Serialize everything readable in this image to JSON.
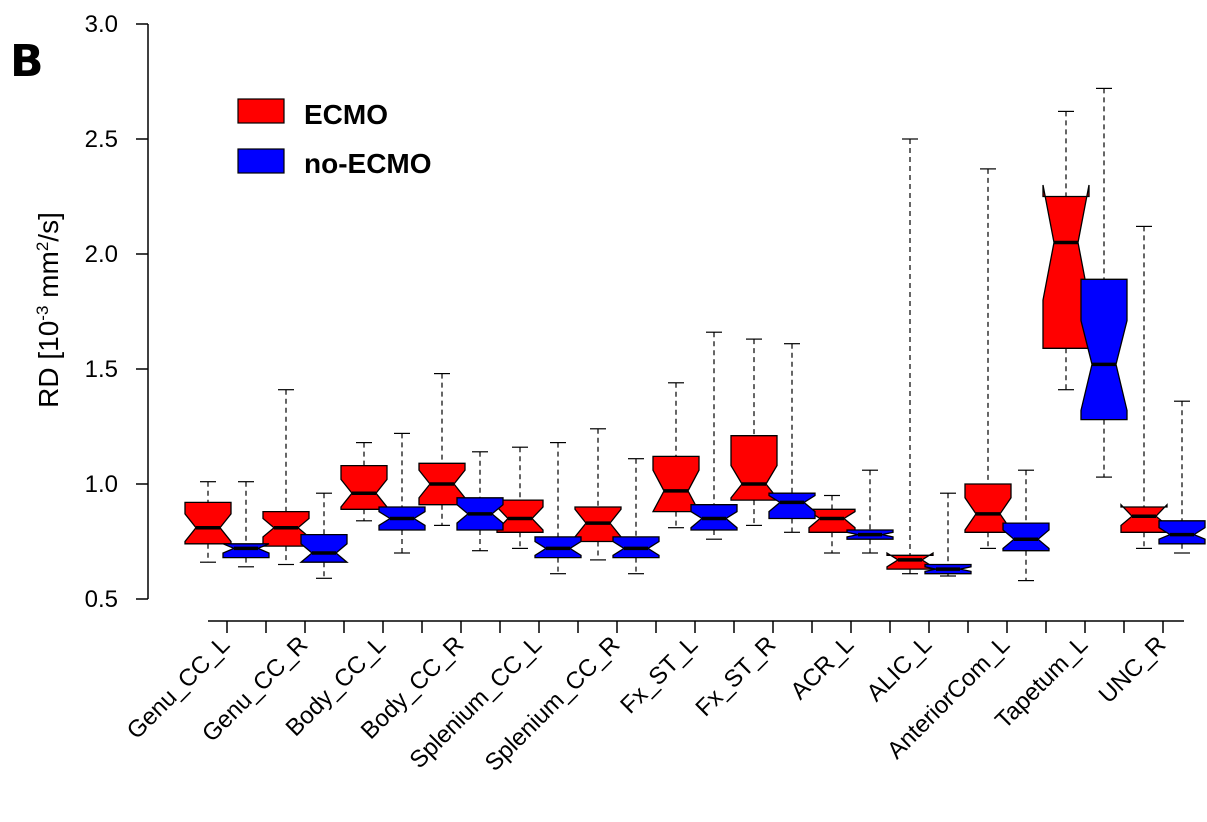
{
  "panel_label": "B",
  "chart_data": {
    "type": "boxplot",
    "notched": true,
    "ylabel": "RD [10-3 mm2/s]",
    "ylabel_parts": {
      "prefix": "RD [10",
      "exp1": "-3",
      "mid": " mm",
      "exp2": "2",
      "suffix": "/s]"
    },
    "ylim": [
      0.5,
      3.0
    ],
    "yticks": [
      0.5,
      1.0,
      1.5,
      2.0,
      2.5,
      3.0
    ],
    "ytick_labels": [
      "0.5",
      "1.0",
      "1.5",
      "2.0",
      "2.5",
      "3.0"
    ],
    "legend": {
      "placement": "top-left",
      "entries": [
        {
          "name": "ECMO",
          "color": "#ff0000"
        },
        {
          "name": "no-ECMO",
          "color": "#0000ff"
        }
      ]
    },
    "categories": [
      "Genu_CC_L",
      "Genu_CC_R",
      "Body_CC_L",
      "Body_CC_R",
      "Splenium_CC_L",
      "Splenium_CC_R",
      "Fx_ST_L",
      "Fx_ST_R",
      "ACR_L",
      "ALIC_L",
      "AnteriorCom_L",
      "Tapetum_L",
      "UNC_R"
    ],
    "series": [
      {
        "name": "ECMO",
        "color": "#ff0000",
        "boxes": [
          {
            "min": 0.66,
            "q1": 0.74,
            "median": 0.81,
            "q3": 0.92,
            "max": 1.01,
            "notch_lo": 0.75,
            "notch_hi": 0.87
          },
          {
            "min": 0.65,
            "q1": 0.73,
            "median": 0.81,
            "q3": 0.88,
            "max": 1.41,
            "notch_lo": 0.77,
            "notch_hi": 0.85
          },
          {
            "min": 0.84,
            "q1": 0.89,
            "median": 0.96,
            "q3": 1.08,
            "max": 1.18,
            "notch_lo": 0.9,
            "notch_hi": 1.02
          },
          {
            "min": 0.82,
            "q1": 0.91,
            "median": 1.0,
            "q3": 1.09,
            "max": 1.48,
            "notch_lo": 0.94,
            "notch_hi": 1.06
          },
          {
            "min": 0.72,
            "q1": 0.79,
            "median": 0.85,
            "q3": 0.93,
            "max": 1.16,
            "notch_lo": 0.8,
            "notch_hi": 0.9
          },
          {
            "min": 0.67,
            "q1": 0.75,
            "median": 0.83,
            "q3": 0.9,
            "max": 1.24,
            "notch_lo": 0.77,
            "notch_hi": 0.89
          },
          {
            "min": 0.81,
            "q1": 0.88,
            "median": 0.97,
            "q3": 1.12,
            "max": 1.44,
            "notch_lo": 0.88,
            "notch_hi": 1.06
          },
          {
            "min": 0.82,
            "q1": 0.93,
            "median": 1.0,
            "q3": 1.21,
            "max": 1.63,
            "notch_lo": 0.94,
            "notch_hi": 1.08
          },
          {
            "min": 0.7,
            "q1": 0.79,
            "median": 0.85,
            "q3": 0.89,
            "max": 0.95,
            "notch_lo": 0.81,
            "notch_hi": 0.88
          },
          {
            "min": 0.61,
            "q1": 0.63,
            "median": 0.67,
            "q3": 0.69,
            "max": 2.5,
            "notch_lo": 0.64,
            "notch_hi": 0.7
          },
          {
            "min": 0.72,
            "q1": 0.79,
            "median": 0.87,
            "q3": 1.0,
            "max": 2.37,
            "notch_lo": 0.8,
            "notch_hi": 0.94
          },
          {
            "min": 1.41,
            "q1": 1.59,
            "median": 2.05,
            "q3": 2.25,
            "max": 2.62,
            "notch_lo": 1.8,
            "notch_hi": 2.3
          },
          {
            "min": 0.72,
            "q1": 0.79,
            "median": 0.86,
            "q3": 0.9,
            "max": 2.12,
            "notch_lo": 0.82,
            "notch_hi": 0.91
          }
        ]
      },
      {
        "name": "no-ECMO",
        "color": "#0000ff",
        "boxes": [
          {
            "min": 0.64,
            "q1": 0.68,
            "median": 0.72,
            "q3": 0.74,
            "max": 1.01,
            "notch_lo": 0.7,
            "notch_hi": 0.74
          },
          {
            "min": 0.59,
            "q1": 0.66,
            "median": 0.7,
            "q3": 0.78,
            "max": 0.96,
            "notch_lo": 0.66,
            "notch_hi": 0.74
          },
          {
            "min": 0.7,
            "q1": 0.8,
            "median": 0.85,
            "q3": 0.9,
            "max": 1.22,
            "notch_lo": 0.82,
            "notch_hi": 0.88
          },
          {
            "min": 0.71,
            "q1": 0.8,
            "median": 0.87,
            "q3": 0.94,
            "max": 1.14,
            "notch_lo": 0.83,
            "notch_hi": 0.91
          },
          {
            "min": 0.61,
            "q1": 0.68,
            "median": 0.72,
            "q3": 0.77,
            "max": 1.18,
            "notch_lo": 0.69,
            "notch_hi": 0.75
          },
          {
            "min": 0.61,
            "q1": 0.68,
            "median": 0.72,
            "q3": 0.77,
            "max": 1.11,
            "notch_lo": 0.69,
            "notch_hi": 0.75
          },
          {
            "min": 0.76,
            "q1": 0.8,
            "median": 0.85,
            "q3": 0.91,
            "max": 1.66,
            "notch_lo": 0.81,
            "notch_hi": 0.88
          },
          {
            "min": 0.79,
            "q1": 0.85,
            "median": 0.92,
            "q3": 0.96,
            "max": 1.61,
            "notch_lo": 0.88,
            "notch_hi": 0.95
          },
          {
            "min": 0.7,
            "q1": 0.76,
            "median": 0.78,
            "q3": 0.8,
            "max": 1.06,
            "notch_lo": 0.77,
            "notch_hi": 0.79
          },
          {
            "min": 0.6,
            "q1": 0.61,
            "median": 0.63,
            "q3": 0.65,
            "max": 0.96,
            "notch_lo": 0.62,
            "notch_hi": 0.64
          },
          {
            "min": 0.58,
            "q1": 0.71,
            "median": 0.76,
            "q3": 0.83,
            "max": 1.06,
            "notch_lo": 0.72,
            "notch_hi": 0.8
          },
          {
            "min": 1.03,
            "q1": 1.28,
            "median": 1.52,
            "q3": 1.89,
            "max": 2.72,
            "notch_lo": 1.32,
            "notch_hi": 1.71
          },
          {
            "min": 0.7,
            "q1": 0.74,
            "median": 0.78,
            "q3": 0.84,
            "max": 1.36,
            "notch_lo": 0.76,
            "notch_hi": 0.81
          }
        ]
      }
    ]
  }
}
